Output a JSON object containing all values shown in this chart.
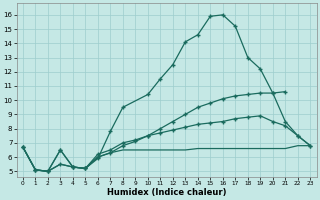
{
  "xlabel": "Humidex (Indice chaleur)",
  "bg_color": "#c5e8e5",
  "grid_color": "#9ecece",
  "line_color": "#1a6b5e",
  "xlim": [
    -0.5,
    23.5
  ],
  "ylim": [
    4.6,
    16.8
  ],
  "xtick_vals": [
    0,
    1,
    2,
    3,
    4,
    5,
    6,
    7,
    8,
    9,
    10,
    11,
    12,
    13,
    14,
    15,
    16,
    17,
    18,
    19,
    20,
    21,
    22,
    23
  ],
  "ytick_vals": [
    5,
    6,
    7,
    8,
    9,
    10,
    11,
    12,
    13,
    14,
    15,
    16
  ],
  "curve1_x": [
    0,
    1,
    2,
    3,
    4,
    5,
    6,
    7,
    8,
    10,
    11,
    12,
    13,
    14,
    15,
    16,
    17,
    18,
    19,
    20,
    21
  ],
  "curve1_y": [
    6.7,
    5.1,
    5.0,
    6.5,
    5.3,
    5.2,
    5.9,
    7.8,
    9.5,
    10.4,
    11.5,
    12.5,
    14.1,
    14.6,
    15.9,
    16.0,
    15.2,
    13.0,
    12.2,
    10.5,
    10.6
  ],
  "curve2_x": [
    0,
    1,
    2,
    3,
    4,
    5,
    6,
    7,
    8,
    9,
    10,
    11,
    12,
    13,
    14,
    15,
    16,
    17,
    18,
    19,
    20,
    21,
    22,
    23
  ],
  "curve2_y": [
    6.7,
    5.1,
    5.0,
    6.5,
    5.3,
    5.2,
    6.2,
    6.5,
    7.0,
    7.2,
    7.5,
    7.7,
    7.9,
    8.1,
    8.3,
    8.4,
    8.5,
    8.7,
    8.8,
    8.9,
    8.5,
    8.2,
    7.5,
    6.8
  ],
  "curve3_x": [
    0,
    1,
    2,
    3,
    4,
    5,
    6,
    7,
    8,
    9,
    10,
    11,
    12,
    13,
    14,
    15,
    16,
    17,
    18,
    19,
    20,
    21,
    22,
    23
  ],
  "curve3_y": [
    6.7,
    5.1,
    5.0,
    5.5,
    5.3,
    5.2,
    6.0,
    6.3,
    6.5,
    6.5,
    6.5,
    6.5,
    6.5,
    6.5,
    6.6,
    6.6,
    6.6,
    6.6,
    6.6,
    6.6,
    6.6,
    6.6,
    6.8,
    6.8
  ],
  "curve4_x": [
    0,
    1,
    2,
    3,
    4,
    5,
    6,
    7,
    8,
    9,
    10,
    11,
    12,
    13,
    14,
    15,
    16,
    17,
    18,
    19,
    20,
    21,
    22,
    23
  ],
  "curve4_y": [
    6.7,
    5.1,
    5.0,
    5.5,
    5.3,
    5.2,
    6.0,
    6.3,
    6.8,
    7.1,
    7.5,
    8.0,
    8.5,
    9.0,
    9.5,
    9.8,
    10.1,
    10.3,
    10.4,
    10.5,
    10.5,
    8.5,
    7.5,
    6.8
  ]
}
